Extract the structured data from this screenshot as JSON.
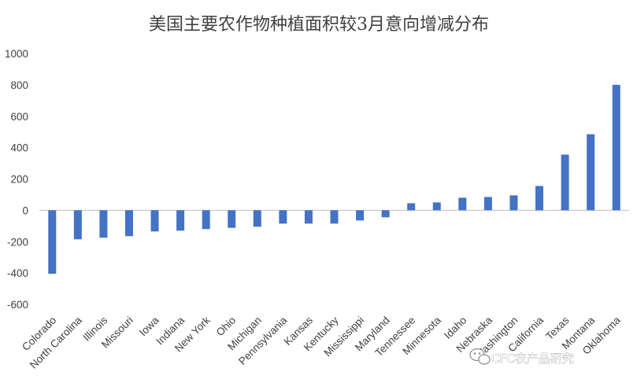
{
  "chart_data": {
    "type": "bar",
    "title": "美国主要农作物种植面积较3月意向增减分布",
    "xlabel": "",
    "ylabel": "",
    "ylim": [
      -600,
      1000
    ],
    "yticks": [
      1000,
      800,
      600,
      400,
      200,
      0,
      -200,
      -400,
      -600
    ],
    "ytick_labels": [
      "1000",
      "800",
      "600",
      "400",
      "200",
      "0",
      "-200",
      "-400",
      "-600"
    ],
    "grid": false,
    "legend": "none",
    "bar_color": "#4472C4",
    "categories": [
      "Colorado",
      "North Carolina",
      "Illinois",
      "Missouri",
      "Iowa",
      "Indiana",
      "New York",
      "Ohio",
      "Michigan",
      "Pennsylvania",
      "Kansas",
      "Kentucky",
      "Mississippi",
      "Maryland",
      "Tennessee",
      "Minnesota",
      "Idaho",
      "Nebraska",
      "Washington",
      "California",
      "Texas",
      "Montana",
      "Oklahoma"
    ],
    "values": [
      -405,
      -185,
      -175,
      -165,
      -135,
      -130,
      -120,
      -112,
      -105,
      -85,
      -85,
      -85,
      -65,
      -45,
      45,
      50,
      80,
      85,
      95,
      155,
      355,
      485,
      800
    ]
  },
  "watermark": {
    "text": "CFC农产品研究",
    "icon": "wechat-icon"
  }
}
